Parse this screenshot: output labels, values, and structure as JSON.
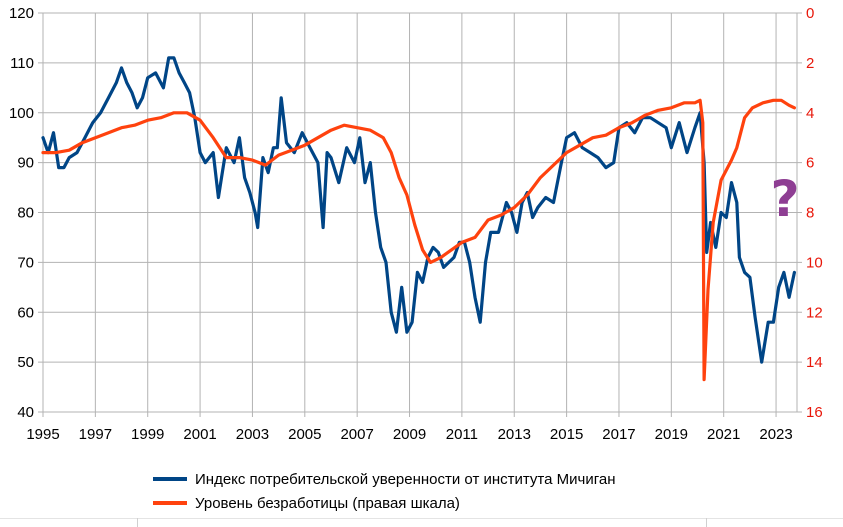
{
  "chart_data": {
    "type": "line",
    "title": "",
    "xlabel": "",
    "ylabel": "",
    "ylabel_right": "",
    "x_range": [
      1995,
      2023.8
    ],
    "ylim": [
      40,
      120
    ],
    "ylim_right": [
      16,
      0
    ],
    "right_axis_inverted": true,
    "grid": "major gridlines, both axes",
    "legend_position": "bottom",
    "annotation": "?",
    "colors": {
      "series1": "#004586",
      "series2": "#ff420e",
      "right_axis_text": "#e8170a",
      "annotation": "#8e3e93",
      "grid": "#b3b3b3"
    },
    "y_ticks_left": [
      "40",
      "50",
      "60",
      "70",
      "80",
      "90",
      "100",
      "110",
      "120"
    ],
    "y_ticks_right": [
      "0",
      "2",
      "4",
      "6",
      "8",
      "10",
      "12",
      "14",
      "16"
    ],
    "x_ticks": [
      "1995",
      "1997",
      "1999",
      "2001",
      "2003",
      "2005",
      "2007",
      "2009",
      "2011",
      "2013",
      "2015",
      "2017",
      "2019",
      "2021",
      "2023"
    ],
    "series": [
      {
        "name": "Индекс потребительской уверенности от института Мичиган",
        "axis": "left",
        "x": [
          1995.0,
          1995.2,
          1995.4,
          1995.6,
          1995.8,
          1996.0,
          1996.3,
          1996.6,
          1996.9,
          1997.2,
          1997.5,
          1997.8,
          1998.0,
          1998.2,
          1998.4,
          1998.6,
          1998.8,
          1999.0,
          1999.3,
          1999.6,
          1999.8,
          2000.0,
          2000.2,
          2000.4,
          2000.6,
          2000.8,
          2001.0,
          2001.2,
          2001.5,
          2001.7,
          2001.85,
          2002.0,
          2002.3,
          2002.5,
          2002.7,
          2002.9,
          2003.1,
          2003.2,
          2003.4,
          2003.6,
          2003.8,
          2003.95,
          2004.1,
          2004.3,
          2004.6,
          2004.9,
          2005.2,
          2005.5,
          2005.7,
          2005.85,
          2006.0,
          2006.3,
          2006.6,
          2006.9,
          2007.1,
          2007.3,
          2007.5,
          2007.7,
          2007.9,
          2008.1,
          2008.3,
          2008.5,
          2008.7,
          2008.9,
          2009.1,
          2009.3,
          2009.5,
          2009.7,
          2009.9,
          2010.1,
          2010.3,
          2010.5,
          2010.7,
          2010.9,
          2011.1,
          2011.3,
          2011.5,
          2011.7,
          2011.9,
          2012.1,
          2012.4,
          2012.7,
          2012.9,
          2013.1,
          2013.3,
          2013.5,
          2013.7,
          2013.9,
          2014.2,
          2014.5,
          2014.8,
          2015.0,
          2015.3,
          2015.6,
          2015.9,
          2016.2,
          2016.5,
          2016.8,
          2017.0,
          2017.3,
          2017.6,
          2017.9,
          2018.2,
          2018.5,
          2018.8,
          2019.0,
          2019.3,
          2019.6,
          2019.9,
          2020.1,
          2020.25,
          2020.35,
          2020.5,
          2020.7,
          2020.9,
          2021.1,
          2021.3,
          2021.5,
          2021.6,
          2021.8,
          2022.0,
          2022.2,
          2022.45,
          2022.7,
          2022.9,
          2023.1,
          2023.3,
          2023.5,
          2023.7
        ],
        "values": [
          95,
          92,
          96,
          89,
          89,
          91,
          92,
          95,
          98,
          100,
          103,
          106,
          109,
          106,
          104,
          101,
          103,
          107,
          108,
          105,
          111,
          111,
          108,
          106,
          104,
          99,
          92,
          90,
          92,
          83,
          88,
          93,
          90,
          95,
          87,
          84,
          80,
          77,
          91,
          88,
          93,
          93,
          103,
          94,
          92,
          96,
          93,
          90,
          77,
          92,
          91,
          86,
          93,
          90,
          95,
          86,
          90,
          80,
          73,
          70,
          60,
          56,
          65,
          56,
          58,
          68,
          66,
          71,
          73,
          72,
          69,
          70,
          71,
          74,
          74,
          70,
          63,
          58,
          70,
          76,
          76,
          82,
          80,
          76,
          82,
          84,
          79,
          81,
          83,
          82,
          90,
          95,
          96,
          93,
          92,
          91,
          89,
          90,
          97,
          98,
          96,
          99,
          99,
          98,
          97,
          93,
          98,
          92,
          97,
          100,
          90,
          72,
          78,
          73,
          80,
          79,
          86,
          82,
          71,
          68,
          67,
          59,
          50,
          58,
          58,
          65,
          68,
          63,
          68
        ]
      },
      {
        "name": "Уровень безработицы (правая шкала)",
        "axis": "right",
        "x": [
          1995.0,
          1995.5,
          1996.0,
          1996.5,
          1997.0,
          1997.5,
          1998.0,
          1998.5,
          1999.0,
          1999.5,
          2000.0,
          2000.5,
          2001.0,
          2001.5,
          2002.0,
          2002.5,
          2003.0,
          2003.5,
          2004.0,
          2004.5,
          2005.0,
          2005.5,
          2006.0,
          2006.5,
          2007.0,
          2007.5,
          2008.0,
          2008.3,
          2008.6,
          2008.9,
          2009.2,
          2009.5,
          2009.8,
          2010.2,
          2010.6,
          2011.0,
          2011.5,
          2012.0,
          2012.5,
          2013.0,
          2013.5,
          2014.0,
          2014.5,
          2015.0,
          2015.5,
          2016.0,
          2016.5,
          2017.0,
          2017.5,
          2018.0,
          2018.5,
          2019.0,
          2019.5,
          2019.9,
          2020.1,
          2020.2,
          2020.25,
          2020.4,
          2020.6,
          2020.9,
          2021.1,
          2021.3,
          2021.5,
          2021.8,
          2022.1,
          2022.5,
          2022.9,
          2023.2,
          2023.5,
          2023.7
        ],
        "values": [
          5.6,
          5.6,
          5.5,
          5.2,
          5.0,
          4.8,
          4.6,
          4.5,
          4.3,
          4.2,
          4.0,
          4.0,
          4.3,
          5.0,
          5.8,
          5.8,
          5.9,
          6.1,
          5.7,
          5.5,
          5.3,
          5.0,
          4.7,
          4.5,
          4.6,
          4.7,
          5.0,
          5.6,
          6.6,
          7.3,
          8.5,
          9.5,
          10.0,
          9.8,
          9.5,
          9.2,
          9.0,
          8.3,
          8.1,
          7.8,
          7.3,
          6.6,
          6.1,
          5.6,
          5.3,
          5.0,
          4.9,
          4.6,
          4.4,
          4.1,
          3.9,
          3.8,
          3.6,
          3.6,
          3.5,
          4.4,
          14.7,
          11.1,
          8.4,
          6.7,
          6.3,
          5.9,
          5.4,
          4.2,
          3.8,
          3.6,
          3.5,
          3.5,
          3.7,
          3.8
        ]
      }
    ]
  }
}
